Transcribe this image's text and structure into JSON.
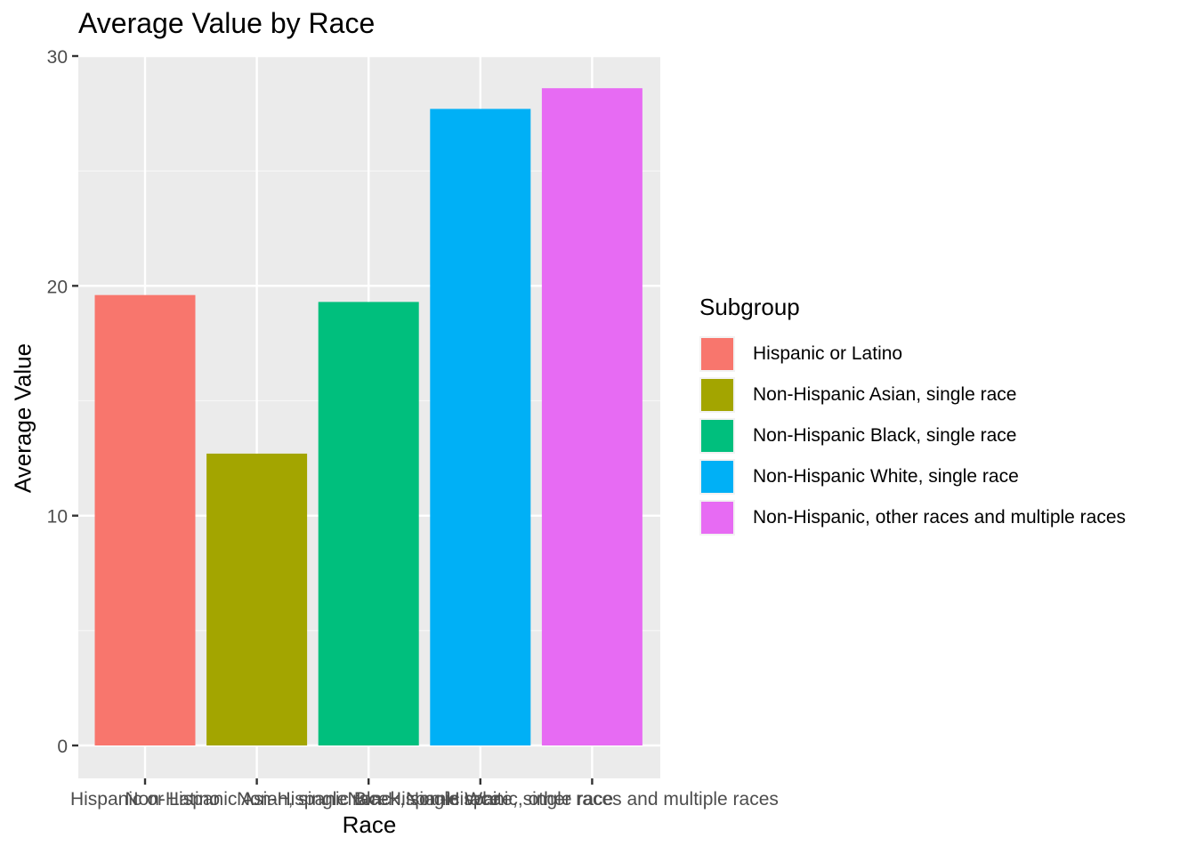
{
  "chart_data": {
    "type": "bar",
    "title": "Average Value by Race",
    "xlabel": "Race",
    "ylabel": "Average Value",
    "categories": [
      "Hispanic or Latino",
      "Non-Hispanic Asian, single race",
      "Non-Hispanic Black, single race",
      "Non-Hispanic White, single race",
      "Non-Hispanic, other races and multiple races"
    ],
    "values": [
      19.6,
      12.7,
      19.3,
      27.7,
      28.6
    ],
    "colors": [
      "#F8766D",
      "#A3A500",
      "#00BF7D",
      "#00B0F6",
      "#E76BF3"
    ],
    "ylim": [
      0,
      30
    ],
    "yticks": [
      0,
      10,
      20,
      30
    ],
    "grid": true,
    "legend": {
      "title": "Subgroup",
      "placement": "right",
      "entries": [
        "Hispanic or Latino",
        "Non-Hispanic Asian, single race",
        "Non-Hispanic Black, single race",
        "Non-Hispanic White, single race",
        "Non-Hispanic, other races and multiple races"
      ]
    }
  }
}
